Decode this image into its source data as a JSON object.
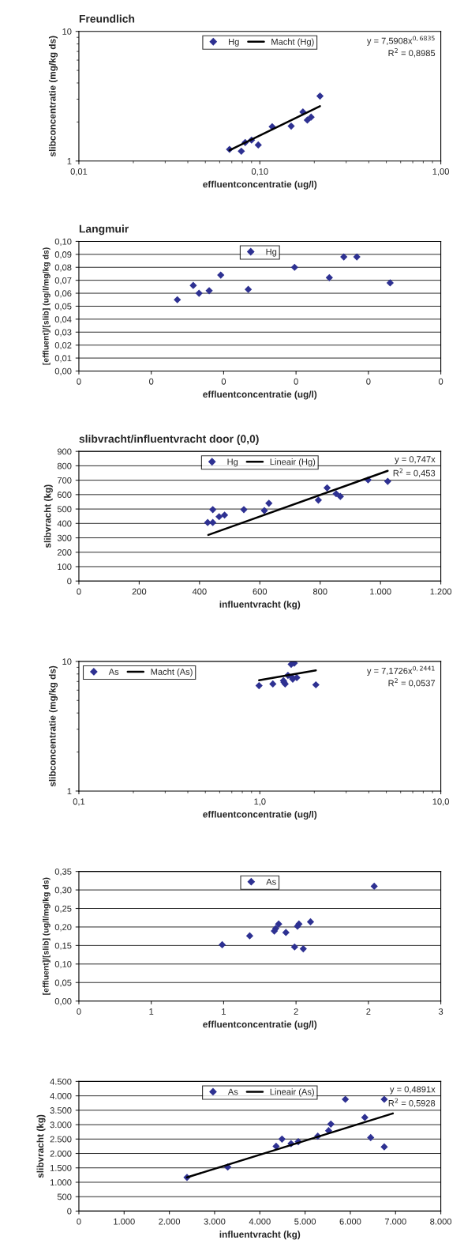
{
  "chart_data": [
    {
      "type": "scatter",
      "title": "Freundlich",
      "xlabel": "effluentconcentratie (ug/l)",
      "ylabel": "slibconcentratie (mg/kg ds)",
      "log": "xy",
      "marker": "diamond",
      "legend": "top",
      "grid": false,
      "xlim": [
        0.01,
        1
      ],
      "xticks": [
        {
          "value": 0.01,
          "label": "0,01"
        },
        {
          "value": 0.1,
          "label": "0,10"
        },
        {
          "value": 1,
          "label": "1,00"
        }
      ],
      "ylim": [
        1,
        10
      ],
      "yticks": [
        1,
        10
      ],
      "annotations": [
        "y = 7,5908x$^{0,6835}$",
        "R$^{2}$ = 0,8985"
      ],
      "series": [
        {
          "name": "Hg",
          "color": "#2e3192",
          "x": [
            0.215,
            0.192,
            0.183,
            0.173,
            0.149,
            0.117,
            0.098,
            0.09,
            0.079,
            0.083,
            0.068
          ],
          "values": [
            3.17,
            2.18,
            2.07,
            2.39,
            1.86,
            1.84,
            1.33,
            1.45,
            1.19,
            1.39,
            1.23
          ]
        },
        {
          "name": "Macht (Hg)",
          "type": "line",
          "marker": "none",
          "color": "#000000",
          "x": [
            0.068,
            0.215
          ],
          "values": [
            1.21,
            2.65
          ]
        }
      ]
    },
    {
      "type": "scatter",
      "title": "Langmuir",
      "xlabel": "effluentconcentratie (ug/l)",
      "ylabel": "[effluent]/[slib] (ug/l/mg/kg ds)",
      "marker": "diamond",
      "legend": "top",
      "grid": "y",
      "xlim": [
        0,
        0.25
      ],
      "xticks": [
        {
          "value": 0,
          "label": "0"
        },
        {
          "value": 0.05,
          "label": "0"
        },
        {
          "value": 0.1,
          "label": "0"
        },
        {
          "value": 0.15,
          "label": "0"
        },
        {
          "value": 0.2,
          "label": "0"
        },
        {
          "value": 0.25,
          "label": "0"
        }
      ],
      "ylim": [
        0,
        0.1
      ],
      "yticks": [
        {
          "value": 0,
          "label": "0,00"
        },
        {
          "value": 0.01,
          "label": "0,01"
        },
        {
          "value": 0.02,
          "label": "0,02"
        },
        {
          "value": 0.03,
          "label": "0,03"
        },
        {
          "value": 0.04,
          "label": "0,04"
        },
        {
          "value": 0.05,
          "label": "0,05"
        },
        {
          "value": 0.06,
          "label": "0,06"
        },
        {
          "value": 0.07,
          "label": "0,07"
        },
        {
          "value": 0.08,
          "label": "0,08"
        },
        {
          "value": 0.09,
          "label": "0,09"
        },
        {
          "value": 0.1,
          "label": "0,10"
        }
      ],
      "series": [
        {
          "name": "Hg",
          "color": "#2e3192",
          "x": [
            0.215,
            0.192,
            0.183,
            0.173,
            0.149,
            0.117,
            0.098,
            0.09,
            0.079,
            0.083,
            0.068
          ],
          "values": [
            0.068,
            0.088,
            0.088,
            0.072,
            0.08,
            0.063,
            0.074,
            0.062,
            0.066,
            0.06,
            0.055
          ]
        }
      ]
    },
    {
      "type": "scatter",
      "title": "slibvracht/influentvracht door (0,0)",
      "xlabel": "influentvracht (kg)",
      "ylabel": "slibvracht (kg)",
      "marker": "diamond",
      "legend": "top",
      "grid": "y",
      "xlim": [
        0,
        1200
      ],
      "xticks": [
        0,
        200,
        400,
        600,
        800,
        {
          "value": 1000,
          "label": "1.000"
        },
        {
          "value": 1200,
          "label": "1.200"
        }
      ],
      "ylim": [
        0,
        900
      ],
      "yticks": [
        0,
        100,
        200,
        300,
        400,
        500,
        600,
        700,
        800,
        900
      ],
      "annotations": [
        "y = 0,747x",
        "R$^{2}$ = 0,453"
      ],
      "series": [
        {
          "name": "Hg",
          "color": "#2e3192",
          "x": [
            1024,
            959,
            867,
            853,
            823,
            794,
            630,
            615,
            547,
            483,
            465,
            444,
            444,
            427
          ],
          "values": [
            692,
            702,
            587,
            606,
            647,
            562,
            540,
            489,
            496,
            458,
            447,
            496,
            406,
            406
          ]
        },
        {
          "name": "Lineair (Hg)",
          "type": "line",
          "marker": "none",
          "color": "#000000",
          "x": [
            429,
            1024
          ],
          "values": [
            320,
            765
          ]
        }
      ]
    },
    {
      "type": "scatter",
      "xlabel": "effluentconcentratie (ug/l)",
      "ylabel": "slibconcentratie (mg/kg ds)",
      "log": "xy",
      "marker": "diamond",
      "legend": "top left",
      "grid": false,
      "xlim": [
        0.1,
        10
      ],
      "xticks": [
        {
          "value": 0.1,
          "label": "0,1"
        },
        {
          "value": 1,
          "label": "1,0"
        },
        {
          "value": 10,
          "label": "10,0"
        }
      ],
      "ylim": [
        1,
        10
      ],
      "yticks": [
        1,
        10
      ],
      "annotations": [
        "y = 7,1726x$^{0,2441}$",
        "R$^{2}$ = 0,0537"
      ],
      "series": [
        {
          "name": "As",
          "color": "#2e3192",
          "x": [
            1.6,
            1.55,
            1.52,
            1.51,
            1.49,
            1.43,
            1.38,
            1.36,
            1.35,
            1.18,
            0.99,
            2.04
          ],
          "values": [
            7.5,
            9.7,
            7.3,
            7.5,
            9.5,
            7.8,
            6.7,
            6.9,
            7.1,
            6.7,
            6.5,
            6.6
          ]
        },
        {
          "name": "Macht (As)",
          "type": "line",
          "marker": "none",
          "color": "#000000",
          "x": [
            0.99,
            2.04
          ],
          "values": [
            7.15,
            8.54
          ]
        }
      ]
    },
    {
      "type": "scatter",
      "xlabel": "effluentconcentratie (ug/l)",
      "ylabel": "[effluent]/[slib] (ug/l/mg/kg ds)",
      "marker": "diamond",
      "legend": "top",
      "grid": "y",
      "xlim": [
        0,
        2.5
      ],
      "xticks": [
        {
          "value": 0,
          "label": "0"
        },
        {
          "value": 0.5,
          "label": "1"
        },
        {
          "value": 1,
          "label": "1"
        },
        {
          "value": 1.5,
          "label": "2"
        },
        {
          "value": 2,
          "label": "2"
        },
        {
          "value": 2.5,
          "label": "3"
        }
      ],
      "ylim": [
        0,
        0.35
      ],
      "yticks": [
        {
          "value": 0,
          "label": "0,00"
        },
        {
          "value": 0.05,
          "label": "0,05"
        },
        {
          "value": 0.1,
          "label": "0,10"
        },
        {
          "value": 0.15,
          "label": "0,15"
        },
        {
          "value": 0.2,
          "label": "0,20"
        },
        {
          "value": 0.25,
          "label": "0,25"
        },
        {
          "value": 0.3,
          "label": "0,30"
        },
        {
          "value": 0.35,
          "label": "0,35"
        }
      ],
      "series": [
        {
          "name": "As",
          "color": "#2e3192",
          "x": [
            1.6,
            1.55,
            1.52,
            1.51,
            1.49,
            1.43,
            1.38,
            1.36,
            1.35,
            1.18,
            0.99,
            2.04
          ],
          "values": [
            0.214,
            0.141,
            0.208,
            0.202,
            0.146,
            0.185,
            0.208,
            0.196,
            0.189,
            0.176,
            0.152,
            0.31
          ]
        }
      ]
    },
    {
      "type": "scatter",
      "xlabel": "influentvracht (kg)",
      "ylabel": "slibvracht (kg)",
      "marker": "diamond",
      "legend": "top",
      "grid": "y",
      "xlim": [
        0,
        8000
      ],
      "xticks": [
        0,
        {
          "value": 1000,
          "label": "1.000"
        },
        {
          "value": 2000,
          "label": "2.000"
        },
        {
          "value": 3000,
          "label": "3.000"
        },
        {
          "value": 4000,
          "label": "4.000"
        },
        {
          "value": 5000,
          "label": "5.000"
        },
        {
          "value": 6000,
          "label": "6.000"
        },
        {
          "value": 7000,
          "label": "7.000"
        },
        {
          "value": 8000,
          "label": "8.000"
        }
      ],
      "ylim": [
        0,
        4500
      ],
      "yticks": [
        0,
        500,
        {
          "value": 1000,
          "label": "1.000"
        },
        {
          "value": 1500,
          "label": "1.500"
        },
        {
          "value": 2000,
          "label": "2.000"
        },
        {
          "value": 2500,
          "label": "2.500"
        },
        {
          "value": 3000,
          "label": "3.000"
        },
        {
          "value": 3500,
          "label": "3.500"
        },
        {
          "value": 4000,
          "label": "4.000"
        },
        {
          "value": 4500,
          "label": "4.500"
        }
      ],
      "annotations": [
        "y = 0,4891x",
        "R$^{2}$ = 0,5928"
      ],
      "series": [
        {
          "name": "As",
          "color": "#2e3192",
          "x": [
            2390,
            3290,
            4360,
            4490,
            4690,
            4850,
            5280,
            5520,
            5570,
            6320,
            6450,
            6750,
            6750,
            5890
          ],
          "values": [
            1170,
            1530,
            2250,
            2500,
            2340,
            2410,
            2600,
            2790,
            3020,
            3250,
            2550,
            2230,
            3880,
            3880
          ]
        },
        {
          "name": "Lineair (As)",
          "type": "line",
          "marker": "none",
          "color": "#000000",
          "x": [
            2390,
            6940
          ],
          "values": [
            1170,
            3390
          ]
        }
      ]
    }
  ]
}
